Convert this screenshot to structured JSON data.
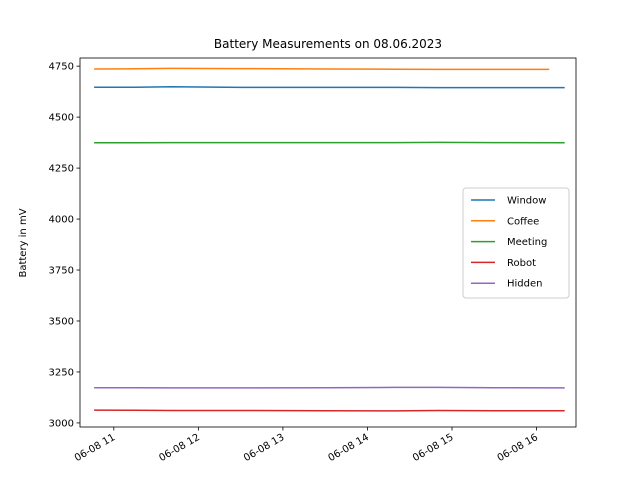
{
  "chart_data": {
    "type": "line",
    "title": "Battery Measurements on 08.06.2023",
    "xlabel": "",
    "ylabel": "Battery in mV",
    "x_type": "time",
    "xlim": [
      "2023-06-08 10:36",
      "2023-06-08 16:28"
    ],
    "ylim": [
      2980,
      4790
    ],
    "x_ticks": [
      {
        "t": "2023-06-08 11:00",
        "label": "06-08 11"
      },
      {
        "t": "2023-06-08 12:00",
        "label": "06-08 12"
      },
      {
        "t": "2023-06-08 13:00",
        "label": "06-08 13"
      },
      {
        "t": "2023-06-08 14:00",
        "label": "06-08 14"
      },
      {
        "t": "2023-06-08 15:00",
        "label": "06-08 15"
      },
      {
        "t": "2023-06-08 16:00",
        "label": "06-08 16"
      }
    ],
    "y_ticks": [
      3000,
      3250,
      3500,
      3750,
      4000,
      4250,
      4500,
      4750
    ],
    "grid": false,
    "legend_position": "center-right",
    "series": [
      {
        "name": "Window",
        "color": "#1f77b4",
        "x": [
          "2023-06-08 10:46",
          "2023-06-08 11:15",
          "2023-06-08 11:41",
          "2023-06-08 12:30",
          "2023-06-08 13:30",
          "2023-06-08 14:20",
          "2023-06-08 14:50",
          "2023-06-08 15:30",
          "2023-06-08 16:20"
        ],
        "y": [
          4647,
          4647,
          4649,
          4646,
          4646,
          4646,
          4645,
          4645,
          4645
        ]
      },
      {
        "name": "Coffee",
        "color": "#ff7f0e",
        "x": [
          "2023-06-08 10:46",
          "2023-06-08 11:15",
          "2023-06-08 11:41",
          "2023-06-08 12:30",
          "2023-06-08 13:30",
          "2023-06-08 14:20",
          "2023-06-08 14:50",
          "2023-06-08 15:30",
          "2023-06-08 16:09"
        ],
        "y": [
          4736,
          4737,
          4739,
          4738,
          4736,
          4735,
          4734,
          4734,
          4734
        ]
      },
      {
        "name": "Meeting",
        "color": "#2ca02c",
        "x": [
          "2023-06-08 10:46",
          "2023-06-08 11:15",
          "2023-06-08 11:41",
          "2023-06-08 12:30",
          "2023-06-08 13:30",
          "2023-06-08 14:20",
          "2023-06-08 14:50",
          "2023-06-08 15:30",
          "2023-06-08 16:20"
        ],
        "y": [
          4374,
          4374,
          4375,
          4375,
          4375,
          4375,
          4376,
          4375,
          4374
        ]
      },
      {
        "name": "Robot",
        "color": "#d62728",
        "x": [
          "2023-06-08 10:46",
          "2023-06-08 11:15",
          "2023-06-08 11:41",
          "2023-06-08 12:30",
          "2023-06-08 13:30",
          "2023-06-08 14:20",
          "2023-06-08 14:50",
          "2023-06-08 15:30",
          "2023-06-08 16:20"
        ],
        "y": [
          3063,
          3062,
          3061,
          3061,
          3060,
          3059,
          3061,
          3060,
          3060
        ]
      },
      {
        "name": "Hidden",
        "color": "#9467bd",
        "x": [
          "2023-06-08 10:46",
          "2023-06-08 11:15",
          "2023-06-08 11:41",
          "2023-06-08 12:30",
          "2023-06-08 13:30",
          "2023-06-08 14:20",
          "2023-06-08 14:50",
          "2023-06-08 15:30",
          "2023-06-08 16:20"
        ],
        "y": [
          3173,
          3173,
          3172,
          3172,
          3173,
          3174,
          3174,
          3173,
          3172
        ]
      }
    ]
  }
}
